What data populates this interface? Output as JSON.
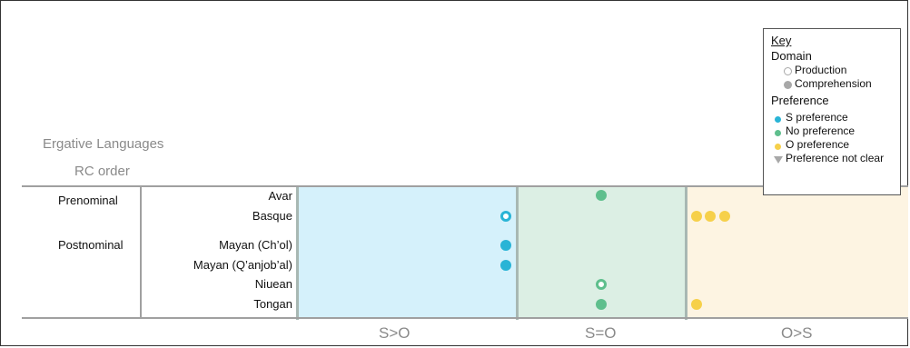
{
  "header": {
    "title": "Ergative Languages",
    "column_label": "RC order"
  },
  "rows": [
    {
      "order": "Prenominal",
      "language": "Avar"
    },
    {
      "order": "",
      "language": "Basque"
    },
    {
      "order": "Postnominal",
      "language": "Mayan (Ch’ol)"
    },
    {
      "order": "",
      "language": "Mayan (Q’anjob’al)"
    },
    {
      "order": "",
      "language": "Niuean"
    },
    {
      "order": "",
      "language": "Tongan"
    }
  ],
  "axis": {
    "labels": [
      "S>O",
      "S=O",
      "O>S"
    ]
  },
  "key": {
    "title": "Key",
    "domain_heading": "Domain",
    "domain_items": [
      "Production",
      "Comprehension"
    ],
    "preference_heading": "Preference",
    "preference_items": [
      "S preference",
      "No preference",
      "O preference",
      "Preference not clear"
    ]
  },
  "colors": {
    "s_preference": "#29b4d6",
    "no_preference": "#5fbf8d",
    "o_preference": "#f6d04a",
    "not_clear": "#a8a8a8",
    "zone_s": "#d5f1fb",
    "zone_n": "#dcefe4",
    "zone_o": "#fdf4e2"
  },
  "data_points": [
    {
      "language": "Avar",
      "preference": "S=O",
      "domain": "Comprehension",
      "count": 1
    },
    {
      "language": "Basque",
      "preference": "S>O",
      "domain": "Production",
      "count": 1
    },
    {
      "language": "Basque",
      "preference": "O>S",
      "domain": "Comprehension",
      "count": 3
    },
    {
      "language": "Mayan (Ch’ol)",
      "preference": "S>O",
      "domain": "Comprehension",
      "count": 1
    },
    {
      "language": "Mayan (Q’anjob’al)",
      "preference": "S>O",
      "domain": "Comprehension",
      "count": 1
    },
    {
      "language": "Niuean",
      "preference": "S=O",
      "domain": "Production",
      "count": 1
    },
    {
      "language": "Tongan",
      "preference": "S=O",
      "domain": "Comprehension",
      "count": 1
    },
    {
      "language": "Tongan",
      "preference": "O>S",
      "domain": "Comprehension",
      "count": 1
    }
  ]
}
